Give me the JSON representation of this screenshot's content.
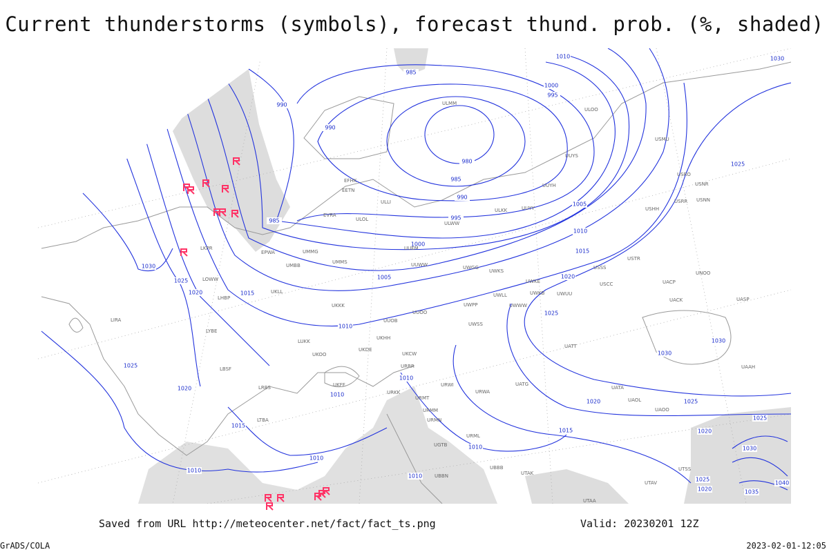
{
  "header": {
    "title": "Current thunderstorms (symbols), forecast thund. prob. (%, shaded)"
  },
  "footer": {
    "source": "Saved from URL http://meteocenter.net/fact/fact_ts.png",
    "valid": "Valid: 20230201 12Z",
    "credit": "GrADS/COLA",
    "timestamp": "2023-02-01-12:05"
  },
  "isobar_labels": [
    985,
    990,
    990,
    980,
    985,
    990,
    995,
    985,
    1000,
    1005,
    1010,
    1015,
    1020,
    1025,
    1030,
    1000,
    995,
    1005,
    1010,
    1015,
    1020,
    1025,
    1025,
    1020,
    1025,
    1030,
    1030,
    1025,
    1020,
    1015,
    1010,
    1010,
    1010,
    1010,
    1015,
    1010,
    1010,
    1025,
    1020,
    1030,
    1040,
    1035,
    1025,
    1020,
    1030,
    1010
  ],
  "stations": [
    "ULMM",
    "ULOO",
    "EFHK",
    "EETN",
    "ULLI",
    "EVRA",
    "ULOL",
    "UMMG",
    "UMMS",
    "UUEM",
    "ULWW",
    "ULKK",
    "UUYY",
    "UUYH",
    "UUYS",
    "USRR",
    "USNN",
    "USRO",
    "USNR",
    "USHH",
    "USMU",
    "USSS",
    "USCC",
    "USTR",
    "UACP",
    "UNOO",
    "UACK",
    "UASP",
    "UAAH",
    "UATT",
    "UATG",
    "UATA",
    "UAOL",
    "UAOO",
    "UUWW",
    "UWGG",
    "UWKS",
    "UWKE",
    "UWKB",
    "UWUU",
    "UWPP",
    "UWWW",
    "UWLL",
    "UWSS",
    "URWA",
    "URWI",
    "URMM",
    "URMN",
    "URMT",
    "URML",
    "UUOO",
    "UUOB",
    "UKKK",
    "UKLL",
    "UKHH",
    "UKDE",
    "UKOO",
    "UKCW",
    "UKFF",
    "URRR",
    "URKK",
    "LYBE",
    "LHBP",
    "LIRA",
    "LBSF",
    "LRBS",
    "LTBA",
    "LOWW",
    "LKPR",
    "EPWA",
    "UMBB",
    "LUKK",
    "UGTB",
    "UBBB",
    "UTAK",
    "UBBN",
    "UTAA",
    "UTAV",
    "UTSS"
  ]
}
